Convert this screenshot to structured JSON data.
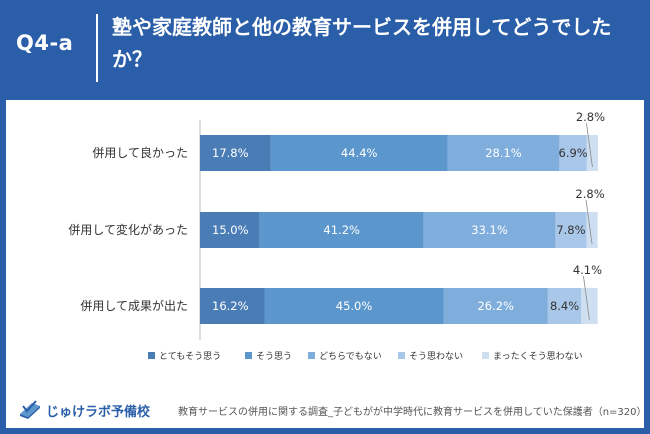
{
  "header": {
    "question_label": "Q4-a",
    "title": "塾や家庭教師と他の教育サービスを併用してどうでしたか？"
  },
  "colors": {
    "header_bg": "#2a5ea8",
    "series": [
      "#4a7db6",
      "#5b96cc",
      "#7faddc",
      "#a9c7e8",
      "#cfdff2"
    ]
  },
  "chart_data": {
    "type": "bar",
    "orientation": "horizontal",
    "stacked": true,
    "unit": "%",
    "xlim": [
      0,
      100
    ],
    "categories": [
      "併用して良かった",
      "併用して変化があった",
      "併用して成果が出た"
    ],
    "series": [
      {
        "name": "とてもそう思う",
        "values": [
          17.8,
          15.0,
          16.2
        ]
      },
      {
        "name": "そう思う",
        "values": [
          44.4,
          41.2,
          45.0
        ]
      },
      {
        "name": "どちらでもない",
        "values": [
          28.1,
          33.1,
          26.2
        ]
      },
      {
        "name": "そう思わない",
        "values": [
          6.9,
          7.8,
          8.4
        ]
      },
      {
        "name": "まったくそう思わない",
        "values": [
          2.8,
          2.8,
          4.1
        ]
      }
    ],
    "value_labels": [
      [
        "17.8%",
        "44.4%",
        "28.1%",
        "6.9%",
        "2.8%"
      ],
      [
        "15.0%",
        "41.2%",
        "33.1%",
        "7.8%",
        "2.8%"
      ],
      [
        "16.2%",
        "45.0%",
        "26.2%",
        "8.4%",
        "4.1%"
      ]
    ],
    "legend_position": "bottom"
  },
  "footer": {
    "logo_text": "じゅけラボ予備校",
    "source": "教育サービスの併用に関する調査_子どもがが中学時代に教育サービスを併用していた保護者（n=320）"
  }
}
